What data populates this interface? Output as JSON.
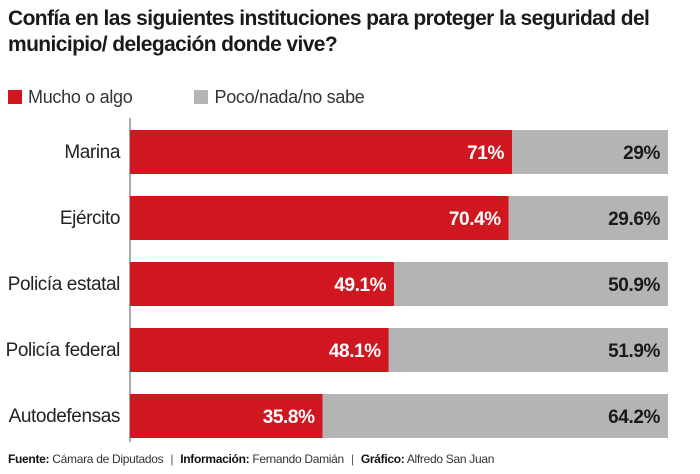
{
  "chart_data": {
    "type": "bar",
    "stacked": true,
    "orientation": "horizontal",
    "title": "Confía en las siguientes instituciones para proteger la seguridad del municipio/ delegación donde vive?",
    "categories": [
      "Marina",
      "Ejército",
      "Policía estatal",
      "Policía federal",
      "Autodefensas"
    ],
    "series": [
      {
        "name": "Mucho o algo",
        "color": "#d0161f",
        "values": [
          71,
          70.4,
          49.1,
          48.1,
          35.8
        ],
        "labels": [
          "71%",
          "70.4%",
          "49.1%",
          "48.1%",
          "35.8%"
        ]
      },
      {
        "name": "Poco/nada/no sabe",
        "color": "#b4b4b4",
        "values": [
          29,
          29.6,
          50.9,
          51.9,
          64.2
        ],
        "labels": [
          "29%",
          "29.6%",
          "50.9%",
          "51.9%",
          "64.2%"
        ]
      }
    ],
    "xlim": [
      0,
      100
    ],
    "grid": false,
    "legend_position": "top-left"
  },
  "footer": {
    "source_label": "Fuente:",
    "source_value": "Cámara de Diputados",
    "info_label": "Información:",
    "info_value": "Fernando Damián",
    "graphic_label": "Gráfico:",
    "graphic_value": "Alfredo San Juan",
    "separator": "|"
  }
}
